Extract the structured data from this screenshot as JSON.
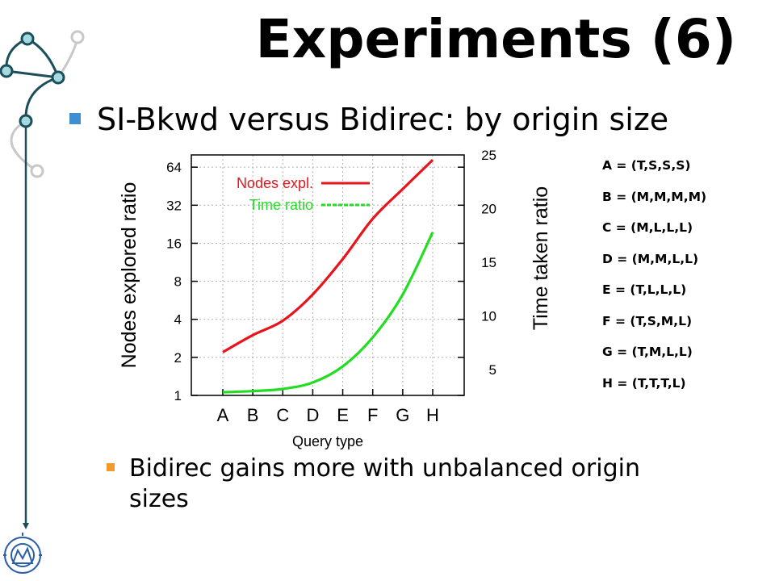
{
  "slide": {
    "title": "Experiments (6)",
    "bullet_main": "SI-Bkwd versus Bidirec: by origin size",
    "bullet_sub": "Bidirec gains more with unbalanced origin sizes",
    "colors": {
      "bullet_main": "#3d8fd1",
      "bullet_sub": "#f39a2e",
      "deco": "#1b4f5a",
      "deco_light": "#bdbdbd"
    }
  },
  "query_defs": [
    "A = (T,S,S,S)",
    "B = (M,M,M,M)",
    "C = (M,L,L,L)",
    "D = (M,M,L,L)",
    "E = (T,L,L,L)",
    "F = (T,S,M,L)",
    "G = (T,M,L,L)",
    "H = (T,T,T,L)"
  ],
  "chart_data": {
    "type": "line",
    "xlabel": "Query type",
    "ylabel": "Nodes explored ratio",
    "y2label": "Time taken ratio",
    "categories": [
      "A",
      "B",
      "C",
      "D",
      "E",
      "F",
      "G",
      "H"
    ],
    "y_scale": "log2",
    "ylim": [
      1,
      80
    ],
    "y_ticks": [
      "1",
      "2",
      "4",
      "8",
      "16",
      "32",
      "64"
    ],
    "y2lim": [
      2.6,
      25
    ],
    "y2_ticks": [
      "5",
      "10",
      "15",
      "20",
      "25"
    ],
    "grid": true,
    "legend_position": "top-left",
    "series": [
      {
        "name": "Nodes expl.",
        "axis": "left",
        "color": "#e8141b",
        "values": [
          2.2,
          3.0,
          3.9,
          6.3,
          12.0,
          25.0,
          43.0,
          73.0
        ]
      },
      {
        "name": "Time ratio",
        "axis": "right",
        "color": "#22dd22",
        "dashed": true,
        "values": [
          2.9,
          3.0,
          3.2,
          3.8,
          5.3,
          8.0,
          12.0,
          17.8
        ]
      }
    ]
  }
}
